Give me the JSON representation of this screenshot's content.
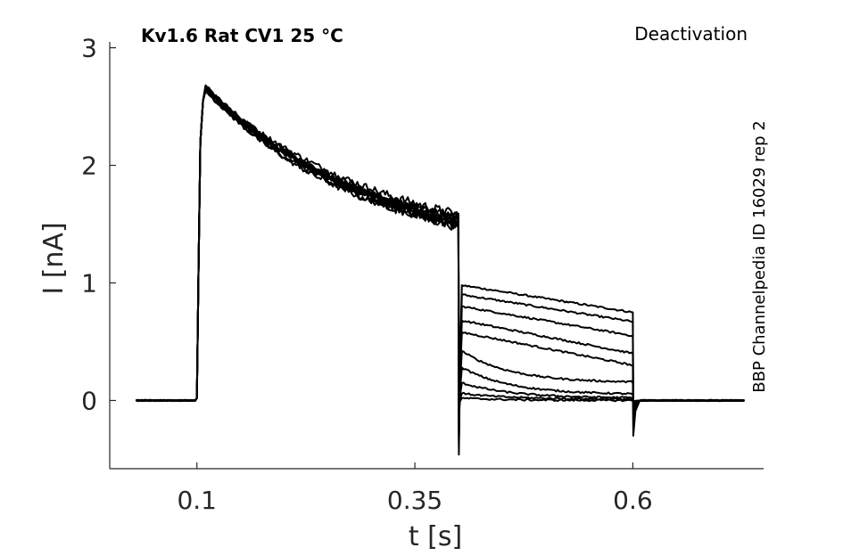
{
  "chart_data": {
    "type": "line",
    "title": "Kv1.6  Rat  CV1  25 °C",
    "annotation_right": "Deactivation",
    "side_annotation": "BBP Channelpedia ID 16029 rep 2",
    "xlabel": "t [s]",
    "ylabel": "I [nA]",
    "xlim": [
      -0.0,
      0.75
    ],
    "ylim": [
      -0.58,
      3.05
    ],
    "xticks": [
      0.1,
      0.35,
      0.6
    ],
    "xtick_labels": [
      "0.1",
      "0.35",
      "0.6"
    ],
    "yticks": [
      0,
      1,
      2,
      3
    ],
    "ytick_labels": [
      "0",
      "1",
      "2",
      "3"
    ],
    "grid": false,
    "protocol": {
      "t_start": 0.03,
      "t_step_on": 0.1,
      "t_step_off": 0.4,
      "t_tail_off": 0.6,
      "t_end": 0.73
    },
    "series": [
      {
        "peak": 2.68,
        "end_of_step": 1.55,
        "tail_start": 0.98,
        "tail_end": 0.75,
        "tail_spike": -0.46,
        "off_spike": -0.3
      },
      {
        "peak": 2.66,
        "end_of_step": 1.52,
        "tail_start": 0.9,
        "tail_end": 0.67,
        "tail_spike": -0.4,
        "off_spike": -0.22
      },
      {
        "peak": 2.65,
        "end_of_step": 1.58,
        "tail_start": 0.8,
        "tail_end": 0.55,
        "tail_spike": -0.35,
        "off_spike": -0.16
      },
      {
        "peak": 2.64,
        "end_of_step": 1.5,
        "tail_start": 0.68,
        "tail_end": 0.4,
        "tail_spike": -0.3,
        "off_spike": -0.1
      },
      {
        "peak": 2.63,
        "end_of_step": 1.48,
        "tail_start": 0.58,
        "tail_end": 0.3,
        "tail_spike": -0.25,
        "off_spike": -0.06
      },
      {
        "peak": 2.67,
        "end_of_step": 1.53,
        "tail_start": 0.42,
        "tail_end": 0.15,
        "tail_spike": -0.2,
        "off_spike": -0.04
      },
      {
        "peak": 2.66,
        "end_of_step": 1.55,
        "tail_start": 0.28,
        "tail_end": 0.05,
        "tail_spike": -0.15,
        "off_spike": -0.03
      },
      {
        "peak": 2.65,
        "end_of_step": 1.51,
        "tail_start": 0.15,
        "tail_end": 0.02,
        "tail_spike": -0.1,
        "off_spike": -0.02
      },
      {
        "peak": 2.64,
        "end_of_step": 1.49,
        "tail_start": 0.06,
        "tail_end": 0.01,
        "tail_spike": -0.06,
        "off_spike": -0.01
      },
      {
        "peak": 2.68,
        "end_of_step": 1.56,
        "tail_start": 0.02,
        "tail_end": 0.0,
        "tail_spike": -0.04,
        "off_spike": -0.01
      }
    ]
  }
}
